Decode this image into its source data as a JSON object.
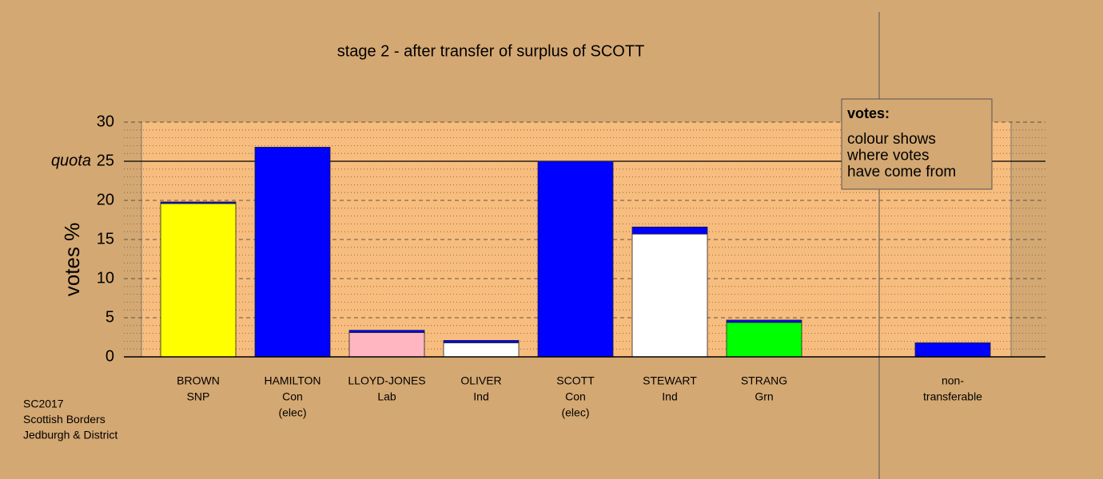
{
  "chart_data": {
    "type": "bar",
    "stacked": true,
    "title": "stage 2 - after transfer of surplus of SCOTT",
    "ylabel": "votes %",
    "quota_label": "quota",
    "quota": 25,
    "categories": [
      [
        "BROWN",
        "SNP"
      ],
      [
        "HAMILTON",
        "Con",
        "(elec)"
      ],
      [
        "LLOYD-JONES",
        "Lab"
      ],
      [
        "OLIVER",
        "Ind"
      ],
      [
        "SCOTT",
        "Con",
        "(elec)"
      ],
      [
        "STEWART",
        "Ind"
      ],
      [
        "STRANG",
        "Grn"
      ],
      null,
      [
        "non-",
        "transferable"
      ]
    ],
    "series": [
      {
        "colors": [
          "#ffff00",
          "#0000ff",
          "#ffb6c1",
          "#ffffff",
          "#0000ff",
          "#ffffff",
          "#00ff00",
          null,
          "#0000ff"
        ],
        "values": [
          19.6,
          26.8,
          3.1,
          1.8,
          25,
          15.7,
          4.4,
          null,
          1.8
        ]
      },
      {
        "color": "#0000ff",
        "values": [
          0.2,
          null,
          0.3,
          0.3,
          null,
          0.9,
          0.3,
          null,
          null
        ]
      }
    ],
    "ylim": [
      0,
      30
    ],
    "yticks": [
      0,
      5,
      10,
      15,
      20,
      25,
      30
    ],
    "minor_yticks": [
      1,
      2,
      3,
      4,
      6,
      7,
      8,
      9,
      11,
      12,
      13,
      14,
      16,
      17,
      18,
      19,
      21,
      22,
      23,
      24,
      26,
      27,
      28,
      29
    ],
    "grid": true,
    "legend": {
      "title": "votes:",
      "lines": [
        "colour shows",
        "where votes",
        "have come from"
      ]
    },
    "footer": [
      "SC2017",
      "Scottish Borders",
      "Jedburgh & District"
    ]
  }
}
